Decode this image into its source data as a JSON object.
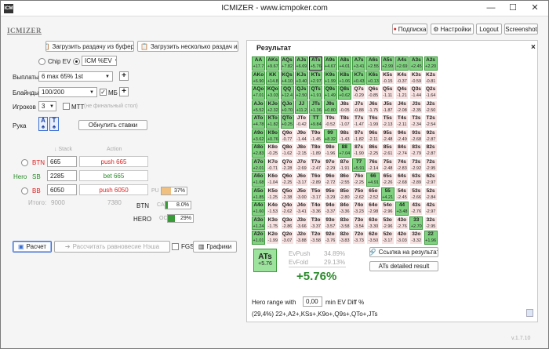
{
  "window": {
    "title": "ICMIZER - www.icmpoker.com",
    "min": "—",
    "max": "☐",
    "close": "✕"
  },
  "logo": "ICMIZER",
  "header": {
    "subscription": "Подписка",
    "settings": "Настройки",
    "logout": "Logout",
    "screenshot": "Screenshot"
  },
  "toolbar": {
    "load_clip": "Загрузить раздачу из буфера",
    "load_many": "Загрузить несколько раздач или тур"
  },
  "mode": {
    "chip_ev": "Chip EV",
    "icm_label": "ICM %EV"
  },
  "payouts": {
    "label": "Выплаты",
    "value": "6 max 65% 1st"
  },
  "blinds": {
    "label": "Блайнды",
    "value": "100/200",
    "mb_label": "МБ"
  },
  "players": {
    "label": "Игроков",
    "value": "3",
    "mtt_label": "MTT",
    "mtt_note": "(не финальный стол)"
  },
  "hand": {
    "label": "Рука",
    "card1": "A",
    "card1_suit": "♠",
    "card2": "T",
    "card2_suit": "♠",
    "reset": "Обнулить ставки"
  },
  "table_headers": {
    "stack": "Stack",
    "action": "Action"
  },
  "seats": [
    {
      "hero": "",
      "pos": "BTN",
      "stack": "665",
      "action": "push 665",
      "action_color": "red"
    },
    {
      "hero": "Hero",
      "pos": "SB",
      "stack": "2285",
      "action": "bet 665",
      "action_color": "green"
    },
    {
      "hero": "",
      "pos": "BB",
      "stack": "6050",
      "action": "push 6050",
      "action_color": "red"
    }
  ],
  "totals": {
    "label": "Итого:",
    "value1": "9000",
    "value2": "7380"
  },
  "bars": [
    {
      "label": "PU",
      "value": "37%",
      "fill": 0.37,
      "color": "#f0c080"
    },
    {
      "label": "BTN",
      "sub": "CA",
      "value": "8.0%",
      "fill": 0.08,
      "color": "#3a9a3a"
    },
    {
      "label": "HERO",
      "sub": "OC",
      "value": "29%",
      "fill": 0.29,
      "color": "#3a9a3a"
    }
  ],
  "bottom": {
    "calc": "Расчет",
    "nash": "Рассчитать равновесие Нэша",
    "fgs": "FGS",
    "charts": "Графики"
  },
  "result": {
    "tab": "Результат",
    "close": "×"
  },
  "grid_labels": [
    [
      "AA",
      "AKs",
      "AQs",
      "AJs",
      "ATs",
      "A9s",
      "A8s",
      "A7s",
      "A6s",
      "A5s",
      "A4s",
      "A3s",
      "A2s"
    ],
    [
      "AKo",
      "KK",
      "KQs",
      "KJs",
      "KTs",
      "K9s",
      "K8s",
      "K7s",
      "K6s",
      "K5s",
      "K4s",
      "K3s",
      "K2s"
    ],
    [
      "AQo",
      "KQo",
      "QQ",
      "QJs",
      "QTs",
      "Q9s",
      "Q8s",
      "Q7s",
      "Q6s",
      "Q5s",
      "Q4s",
      "Q3s",
      "Q2s"
    ],
    [
      "AJo",
      "KJo",
      "QJo",
      "JJ",
      "JTs",
      "J9s",
      "J8s",
      "J7s",
      "J6s",
      "J5s",
      "J4s",
      "J3s",
      "J2s"
    ],
    [
      "ATo",
      "KTo",
      "QTo",
      "JTo",
      "TT",
      "T9s",
      "T8s",
      "T7s",
      "T6s",
      "T5s",
      "T4s",
      "T3s",
      "T2s"
    ],
    [
      "A9o",
      "K9o",
      "Q9o",
      "J9o",
      "T9o",
      "99",
      "98s",
      "97s",
      "96s",
      "95s",
      "94s",
      "93s",
      "92s"
    ],
    [
      "A8o",
      "K8o",
      "Q8o",
      "J8o",
      "T8o",
      "98o",
      "88",
      "87s",
      "86s",
      "85s",
      "84s",
      "83s",
      "82s"
    ],
    [
      "A7o",
      "K7o",
      "Q7o",
      "J7o",
      "T7o",
      "97o",
      "87o",
      "77",
      "76s",
      "75s",
      "74s",
      "73s",
      "72s"
    ],
    [
      "A6o",
      "K6o",
      "Q6o",
      "J6o",
      "T6o",
      "96o",
      "86o",
      "76o",
      "66",
      "65s",
      "64s",
      "63s",
      "62s"
    ],
    [
      "A5o",
      "K5o",
      "Q5o",
      "J5o",
      "T5o",
      "95o",
      "85o",
      "75o",
      "65o",
      "55",
      "54s",
      "53s",
      "52s"
    ],
    [
      "A4o",
      "K4o",
      "Q4o",
      "J4o",
      "T4o",
      "94o",
      "84o",
      "74o",
      "64o",
      "54o",
      "44",
      "43s",
      "42s"
    ],
    [
      "A3o",
      "K3o",
      "Q3o",
      "J3o",
      "T3o",
      "93o",
      "83o",
      "73o",
      "63o",
      "53o",
      "43o",
      "33",
      "32s"
    ],
    [
      "A2o",
      "K2o",
      "Q2o",
      "J2o",
      "T2o",
      "92o",
      "82o",
      "72o",
      "62o",
      "52o",
      "42o",
      "32o",
      "22"
    ]
  ],
  "grid_values": [
    [
      "+17.7",
      "+9.67",
      "+7.82",
      "+6.69",
      "+5.76",
      "+4.67",
      "+4.01",
      "+3.41",
      "+2.55",
      "+2.99",
      "+2.69",
      "+2.45",
      "+2.20"
    ],
    [
      "+6.90",
      "+14.8",
      "+4.10",
      "+3.40",
      "+2.97",
      "+1.99",
      "+1.06",
      "+0.43",
      "+0.13",
      "-0.15",
      "-0.37",
      "-0.59",
      "-0.81"
    ],
    [
      "+7.01",
      "+3.03",
      "+12.4",
      "+2.50",
      "+1.91",
      "+1.49",
      "+0.62",
      "-0.29",
      "-0.85",
      "-1.11",
      "-1.21",
      "-1.44",
      "-1.64"
    ],
    [
      "+5.52",
      "+2.32",
      "+0.70",
      "+11.2",
      "+1.36",
      "+0.80",
      "-0.05",
      "-0.88",
      "-1.75",
      "-1.87",
      "-2.08",
      "-2.35",
      "-2.50"
    ],
    [
      "+4.78",
      "+1.82",
      "+0.25",
      "-0.42",
      "+9.84",
      "-0.52",
      "-1.07",
      "-1.47",
      "-1.99",
      "-2.13",
      "-2.11",
      "-2.34",
      "-2.54"
    ],
    [
      "+3.62",
      "+0.76",
      "-0.77",
      "-1.44",
      "-1.45",
      "+8.32",
      "-1.43",
      "-1.82",
      "-2.11",
      "-2.48",
      "-2.49",
      "-2.68",
      "-2.87"
    ],
    [
      "+2.83",
      "-0.25",
      "-1.62",
      "-2.15",
      "-1.89",
      "-1.96",
      "+7.04",
      "-1.90",
      "-2.25",
      "-2.61",
      "-2.74",
      "-2.79",
      "-2.87"
    ],
    [
      "+2.01",
      "-0.71",
      "-2.28",
      "-2.69",
      "-2.47",
      "-2.29",
      "-1.91",
      "+5.91",
      "-2.14",
      "-2.48",
      "-2.83",
      "-2.92",
      "-2.95"
    ],
    [
      "+1.68",
      "-1.04",
      "-2.25",
      "-3.17",
      "-2.89",
      "-2.72",
      "-2.55",
      "-2.25",
      "+4.91",
      "-2.26",
      "-2.68",
      "-2.89",
      "-2.97"
    ],
    [
      "+1.85",
      "-1.25",
      "-2.38",
      "-3.00",
      "-3.17",
      "-3.29",
      "-2.80",
      "-2.62",
      "-2.52",
      "+4.21",
      "-2.45",
      "-2.66",
      "-2.84"
    ],
    [
      "+1.60",
      "-1.53",
      "-2.62",
      "-3.41",
      "-3.36",
      "-3.37",
      "-3.36",
      "-3.23",
      "-2.98",
      "-2.96",
      "+3.48",
      "-2.76",
      "-2.97"
    ],
    [
      "+1.24",
      "-1.75",
      "-2.86",
      "-3.66",
      "-3.37",
      "-3.57",
      "-3.58",
      "-3.54",
      "-3.30",
      "-2.96",
      "-2.76",
      "+2.70",
      "-2.95"
    ],
    [
      "+1.01",
      "-1.99",
      "-3.07",
      "-3.88",
      "-3.58",
      "-3.76",
      "-3.83",
      "-3.73",
      "-3.50",
      "-3.17",
      "-3.03",
      "-3.32",
      "+1.96"
    ]
  ],
  "summary": {
    "hand": "ATs",
    "hand_ev": "+5.76",
    "evpush_label": "EvPush",
    "evpush": "34.89%",
    "evfold_label": "EvFold",
    "evfold": "29.13%",
    "diff": "+5.76%"
  },
  "links": {
    "share": "Ссылка на результат",
    "details": "ATs detailed result"
  },
  "range": {
    "label": "Hero range with",
    "value": "0,00",
    "suffix": "min EV Diff %",
    "text": "(29,4%) 22+,A2+,KSs+,K9o+,Q9s+,QTo+,JTs"
  },
  "version": "v.1.7.10"
}
